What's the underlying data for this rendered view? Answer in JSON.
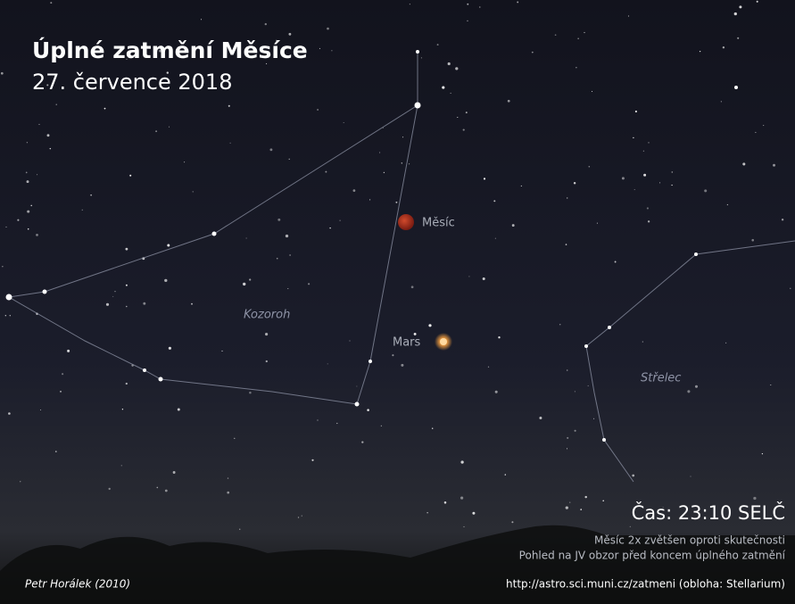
{
  "title": "Úplné zatmění Měsíce",
  "date": "27. července 2018",
  "labels": {
    "moon": "Měsíc",
    "mars": "Mars",
    "capricorn": "Kozoroh",
    "sagittarius": "Střelec"
  },
  "time": "Čas: 23:10 SELČ",
  "notes": [
    "Měsíc 2x zvětšen oproti skutečnosti",
    "Pohled na JV obzor před koncem úplného zatmění"
  ],
  "author": "Petr Horálek (2010)",
  "source": "http://astro.sci.muni.cz/zatmeni (obloha: Stellarium)"
}
